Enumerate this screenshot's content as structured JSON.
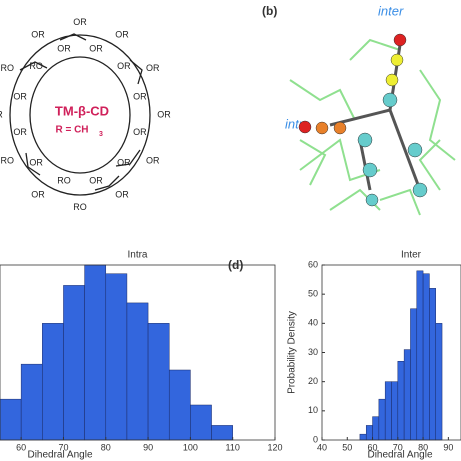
{
  "panel_a": {
    "name": "TM-β-CD",
    "substituent": "R = CH",
    "subscript": "3",
    "groups": [
      "OR",
      "OR",
      "OR",
      "OR",
      "OR",
      "OR",
      "OR",
      "OR",
      "OR",
      "OR",
      "OR",
      "OR",
      "RO",
      "RO",
      "OR",
      "OR",
      "RO",
      "OR",
      "OR",
      "OR",
      "RO",
      "RO",
      "OR",
      "OR"
    ]
  },
  "panel_b": {
    "label": "(b)",
    "inter": "inter",
    "intra": "intra"
  },
  "panel_d": {
    "label": "(d)"
  },
  "chart_data": [
    {
      "type": "histogram",
      "title": "Intra",
      "x_label": "Dihedral Angle",
      "color": "#3366dd",
      "bins": [
        55,
        60,
        65,
        70,
        75,
        80,
        85,
        90,
        95,
        100,
        105,
        110
      ],
      "values": [
        14,
        26,
        40,
        53,
        60,
        57,
        47,
        40,
        24,
        12,
        5
      ],
      "xlim": [
        55,
        120
      ],
      "xticks": [
        60,
        70,
        80,
        90,
        100,
        110,
        120
      ],
      "ylim": [
        0,
        60
      ]
    },
    {
      "type": "histogram",
      "title": "Inter",
      "x_label": "Dihedral Angle",
      "y_label": "Probability Density",
      "color": "#3366dd",
      "bins": [
        55,
        57.5,
        60,
        62.5,
        65,
        67.5,
        70,
        72.5,
        75,
        77.5,
        80,
        82.5,
        85,
        87.5
      ],
      "values": [
        2,
        5,
        8,
        14,
        20,
        20,
        27,
        31,
        45,
        58,
        57,
        52,
        40
      ],
      "xlim": [
        40,
        95
      ],
      "xticks": [
        40,
        50,
        60,
        70,
        80,
        90
      ],
      "ylim": [
        0,
        60
      ],
      "yticks": [
        0,
        10,
        20,
        30,
        40,
        50,
        60
      ]
    }
  ]
}
